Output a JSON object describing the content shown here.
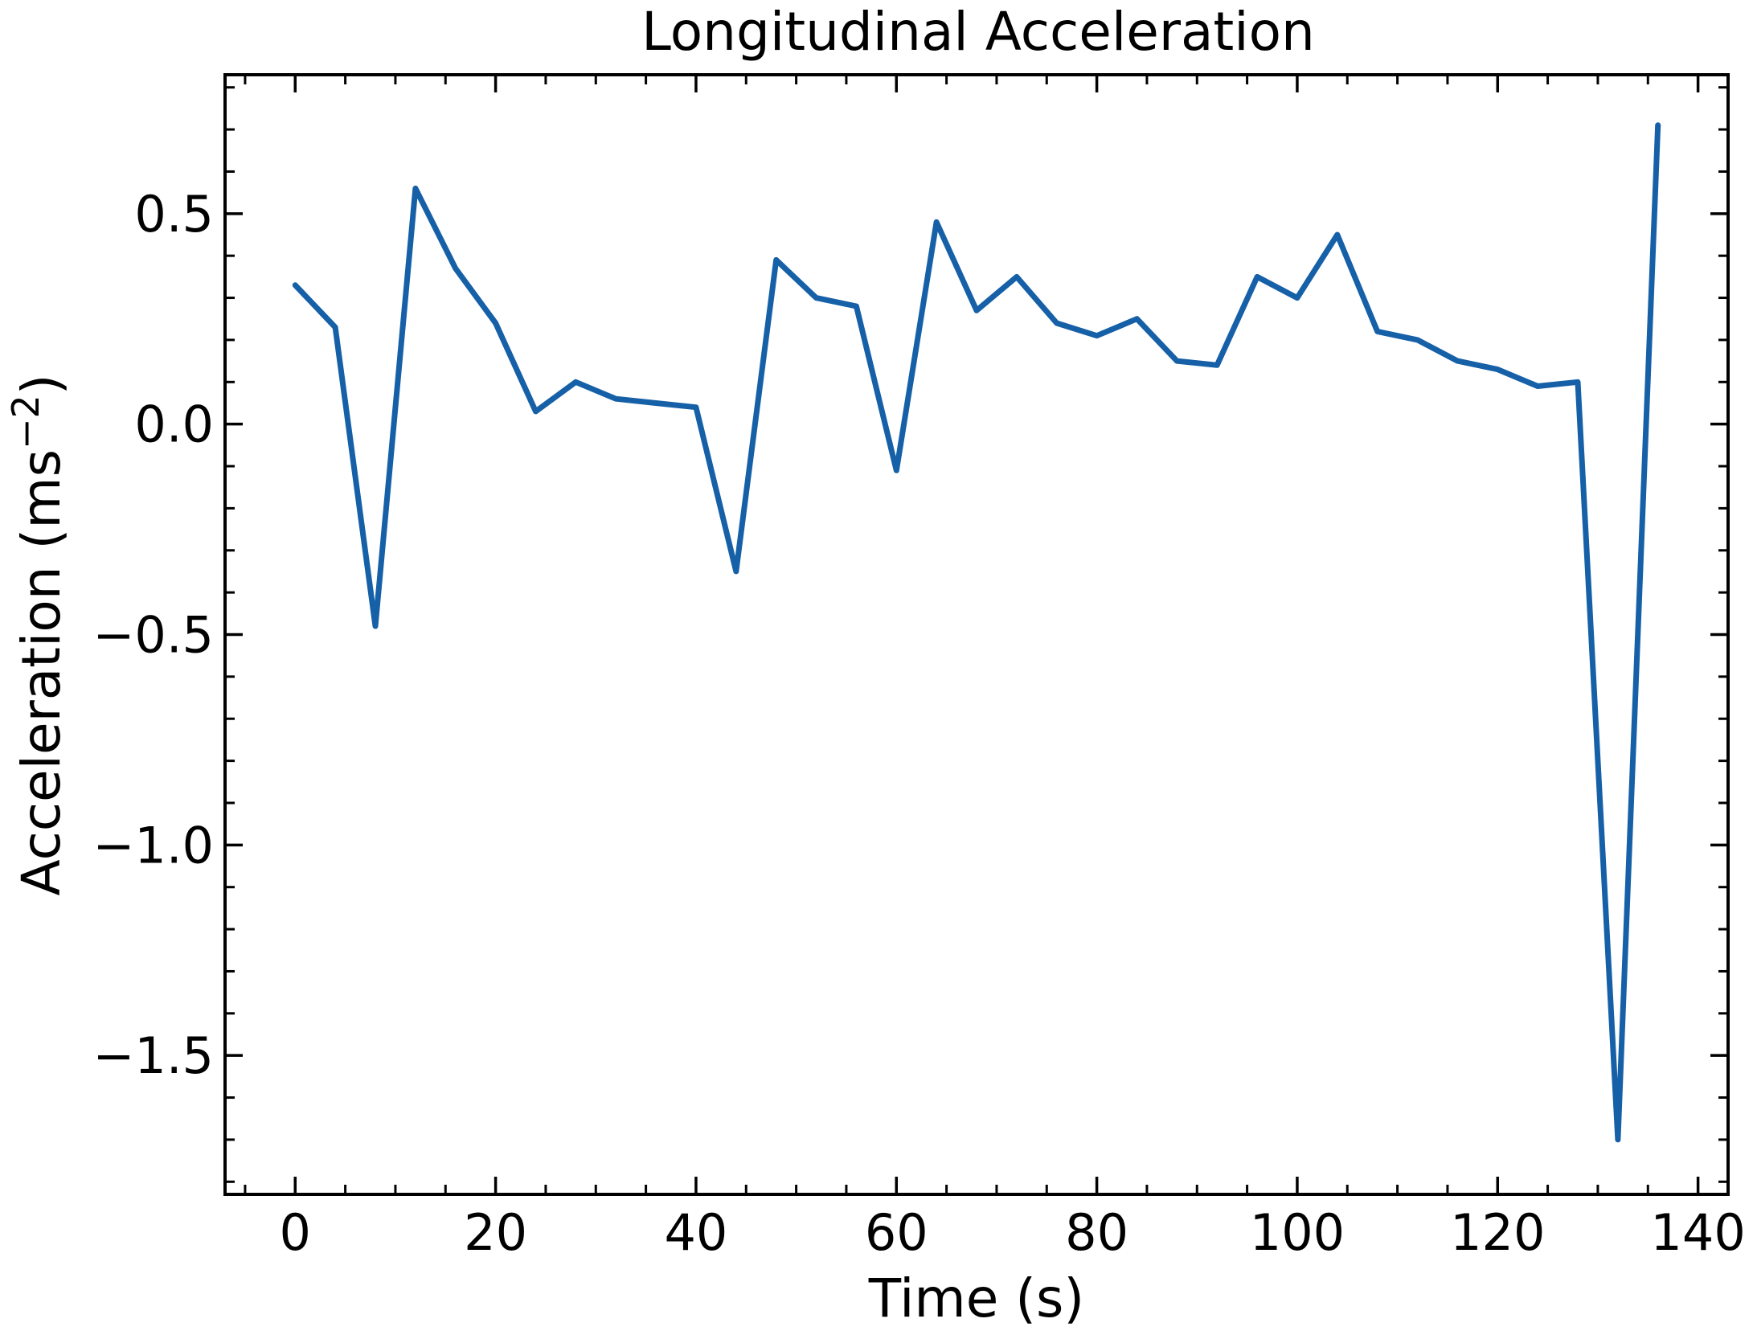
{
  "chart_data": {
    "type": "line",
    "title": "Longitudinal Acceleration",
    "xlabel": "Time (s)",
    "ylabel_main": "Acceleration (ms",
    "ylabel_sup": "−2",
    "ylabel_close": ")",
    "xlim": [
      -7,
      143
    ],
    "ylim": [
      -1.83,
      0.83
    ],
    "xticks": [
      0,
      20,
      40,
      60,
      80,
      100,
      120,
      140
    ],
    "xtick_labels": [
      "0",
      "20",
      "40",
      "60",
      "80",
      "100",
      "120",
      "140"
    ],
    "yticks": [
      0.5,
      0.0,
      -0.5,
      -1.0,
      -1.5
    ],
    "ytick_labels": [
      "0.5",
      "0.0",
      "−0.5",
      "−1.0",
      "−1.5"
    ],
    "x_minor_step": 5,
    "y_minor_step": 0.1,
    "grid": false,
    "line_color": "#1660a8",
    "series": [
      {
        "x": [
          0,
          4,
          8,
          12,
          16,
          20,
          24,
          28,
          32,
          36,
          40,
          44,
          48,
          52,
          56,
          60,
          64,
          68,
          72,
          76,
          80,
          84,
          88,
          92,
          96,
          100,
          104,
          108,
          112,
          116,
          120,
          124,
          128,
          132,
          136
        ],
        "y": [
          0.33,
          0.23,
          -0.48,
          0.56,
          0.37,
          0.24,
          0.03,
          0.1,
          0.06,
          0.05,
          0.04,
          -0.35,
          0.39,
          0.3,
          0.28,
          -0.11,
          0.48,
          0.27,
          0.35,
          0.24,
          0.21,
          0.25,
          0.15,
          0.14,
          0.35,
          0.3,
          0.45,
          0.22,
          0.2,
          0.15,
          0.13,
          0.09,
          0.1,
          -1.7,
          0.71
        ]
      }
    ]
  }
}
